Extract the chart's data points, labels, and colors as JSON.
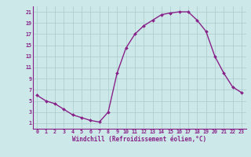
{
  "x": [
    0,
    1,
    2,
    3,
    4,
    5,
    6,
    7,
    8,
    9,
    10,
    11,
    12,
    13,
    14,
    15,
    16,
    17,
    18,
    19,
    20,
    21,
    22,
    23
  ],
  "y": [
    6,
    5,
    4.5,
    3.5,
    2.5,
    2,
    1.5,
    1.2,
    3,
    10,
    14.5,
    17,
    18.5,
    19.5,
    20.5,
    20.8,
    21,
    21,
    19.5,
    17.5,
    13,
    10,
    7.5,
    6.5
  ],
  "line_color": "#882288",
  "marker": "D",
  "marker_size": 2.0,
  "bg_color": "#cce8e8",
  "grid_color": "#aacccc",
  "xlabel": "Windchill (Refroidissement éolien,°C)",
  "xlim": [
    -0.5,
    23.5
  ],
  "ylim": [
    0,
    22
  ],
  "xticks": [
    0,
    1,
    2,
    3,
    4,
    5,
    6,
    7,
    8,
    9,
    10,
    11,
    12,
    13,
    14,
    15,
    16,
    17,
    18,
    19,
    20,
    21,
    22,
    23
  ],
  "yticks": [
    1,
    3,
    5,
    7,
    9,
    11,
    13,
    15,
    17,
    19,
    21
  ],
  "tick_color": "#882288",
  "label_color": "#882288",
  "spine_color": "#882288",
  "xlabel_fontsize": 5.5,
  "tick_fontsize": 4.8,
  "linewidth": 1.0
}
